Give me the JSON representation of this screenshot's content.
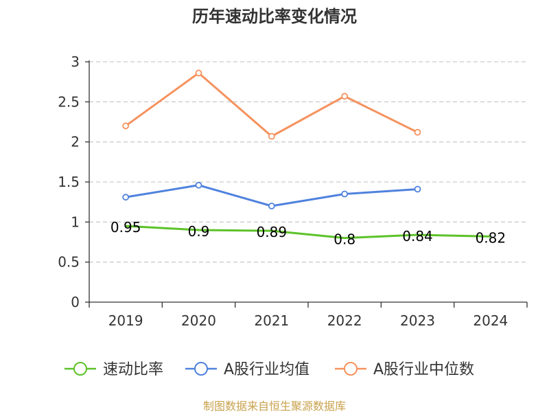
{
  "source_text": "制图数据来自恒生聚源数据库",
  "source_color": "#c8a24c",
  "chart_data": {
    "type": "line",
    "title": "历年速动比率变化情况",
    "categories": [
      "2019",
      "2020",
      "2021",
      "2022",
      "2023",
      "2024"
    ],
    "ylim": [
      0,
      3
    ],
    "yticks": [
      0,
      0.5,
      1,
      1.5,
      2,
      2.5,
      3
    ],
    "ytick_labels": [
      "0",
      "0.5",
      "1",
      "1.5",
      "2",
      "2.5",
      "3"
    ],
    "grid": true,
    "legend_position": "bottom",
    "series": [
      {
        "name": "速动比率",
        "color": "#5cc229",
        "marker": "none",
        "values": [
          0.95,
          0.9,
          0.89,
          0.8,
          0.84,
          0.82
        ],
        "labels": [
          "0.95",
          "0.9",
          "0.89",
          "0.8",
          "0.84",
          "0.82"
        ]
      },
      {
        "name": "A股行业均值",
        "color": "#4f82dd",
        "marker": "circle",
        "values": [
          1.31,
          1.46,
          1.2,
          1.35,
          1.41,
          null
        ]
      },
      {
        "name": "A股行业中位数",
        "color": "#f5925e",
        "marker": "circle",
        "values": [
          2.2,
          2.86,
          2.07,
          2.57,
          2.12,
          null
        ]
      }
    ]
  }
}
